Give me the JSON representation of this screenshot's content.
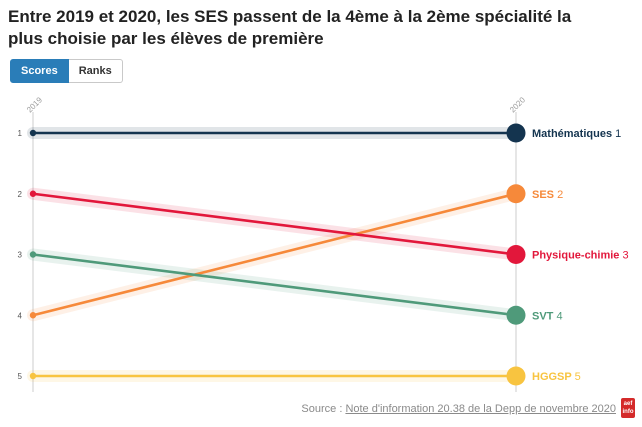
{
  "header": {
    "title": "Entre 2019 et 2020, les SES passent de la 4ème à la 2ème spécialité la plus choisie par les élèves de première"
  },
  "toggle": {
    "scores_label": "Scores",
    "ranks_label": "Ranks",
    "active": "Scores"
  },
  "footer": {
    "source_prefix": "Source : ",
    "source_link": "Note d'information 20.38 de la Depp de novembre 2020",
    "logo_text": "aef info"
  },
  "colors": {
    "mathematiques": "#14344f",
    "ses": "#f6893a",
    "physique": "#e2173b",
    "svt": "#4f9a7a",
    "hggsp": "#f8c440",
    "axis": "#cccccc",
    "label": "#555555"
  },
  "chart_data": {
    "type": "slope",
    "x": [
      "2019",
      "2020"
    ],
    "y_ticks": [
      "1",
      "2",
      "3",
      "4",
      "5"
    ],
    "ylim": [
      1,
      5
    ],
    "y_inverted": true,
    "series": [
      {
        "name": "Mathématiques",
        "values": [
          1,
          1
        ],
        "end_label": "Mathématiques",
        "end_rank": "1",
        "color_key": "mathematiques"
      },
      {
        "name": "SES",
        "values": [
          4,
          2
        ],
        "end_label": "SES",
        "end_rank": "2",
        "color_key": "ses"
      },
      {
        "name": "Physique-chimie",
        "values": [
          2,
          3
        ],
        "end_label": "Physique-chimie",
        "end_rank": "3",
        "color_key": "physique"
      },
      {
        "name": "SVT",
        "values": [
          3,
          4
        ],
        "end_label": "SVT",
        "end_rank": "4",
        "color_key": "svt"
      },
      {
        "name": "HGGSP",
        "values": [
          5,
          5
        ],
        "end_label": "HGGSP",
        "end_rank": "5",
        "color_key": "hggsp"
      }
    ]
  }
}
